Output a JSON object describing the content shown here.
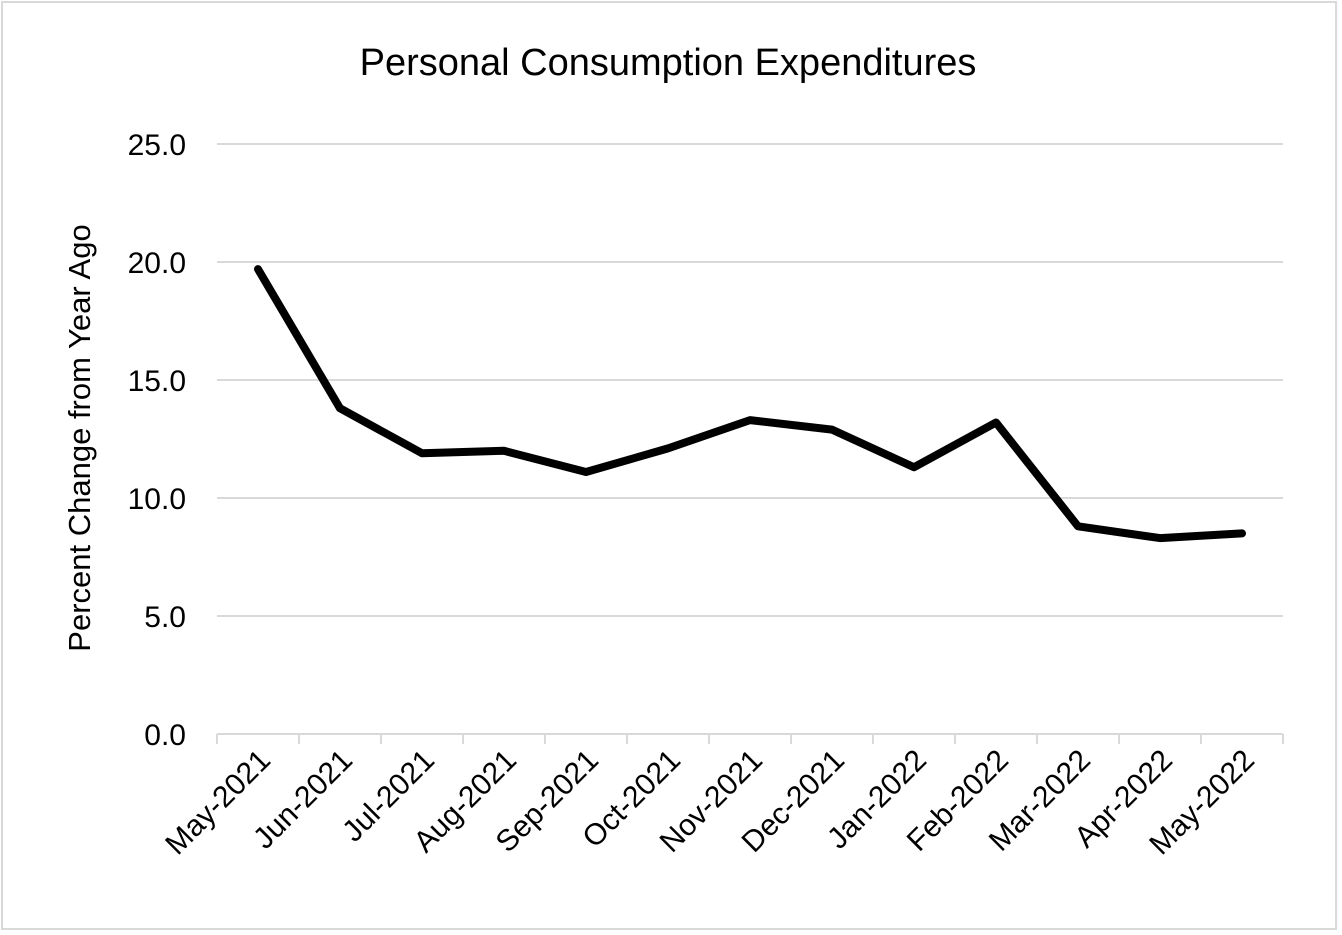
{
  "chart_data": {
    "type": "line",
    "title": "Personal Consumption Expenditures",
    "xlabel": "",
    "ylabel": "Percent Change from Year Ago",
    "categories": [
      "May-2021",
      "Jun-2021",
      "Jul-2021",
      "Aug-2021",
      "Sep-2021",
      "Oct-2021",
      "Nov-2021",
      "Dec-2021",
      "Jan-2022",
      "Feb-2022",
      "Mar-2022",
      "Apr-2022",
      "May-2022"
    ],
    "series": [
      {
        "name": "Personal Consumption Expenditures",
        "values": [
          19.7,
          13.8,
          11.9,
          12.0,
          11.1,
          12.1,
          13.3,
          12.9,
          11.3,
          13.2,
          8.8,
          8.3,
          8.5
        ]
      }
    ],
    "ylim": [
      0,
      25
    ],
    "yticks": [
      0,
      5,
      10,
      15,
      20,
      25
    ],
    "ytick_labels": [
      "0.0",
      "5.0",
      "10.0",
      "15.0",
      "20.0",
      "25.0"
    ],
    "grid": true,
    "colors": {
      "line": "#000000",
      "grid": "#d9d9d9"
    }
  }
}
